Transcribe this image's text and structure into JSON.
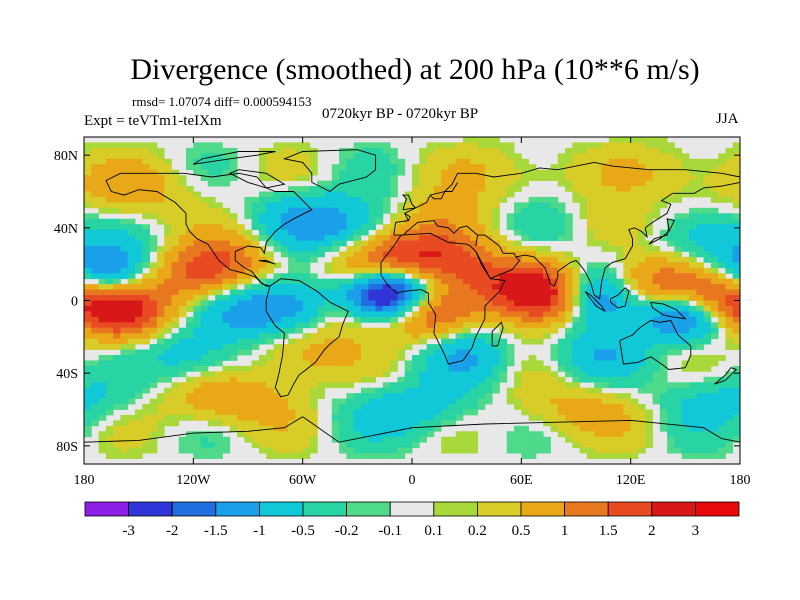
{
  "chart_data": {
    "type": "heatmap",
    "title": "Divergence (smoothed) at 200 hPa (10**6 m/s)",
    "stats_text": "rmsd= 1.07074 diff= 0.000594153",
    "experiment_text": "Expt = teVTm1-teIXm",
    "period_text": "0720kyr BP - 0720kyr BP",
    "season": "JJA",
    "x_range": [
      -180,
      180
    ],
    "y_range": [
      -90,
      90
    ],
    "x_ticks": [
      {
        "value": -180,
        "label": "180"
      },
      {
        "value": -120,
        "label": "120W"
      },
      {
        "value": -60,
        "label": "60W"
      },
      {
        "value": 0,
        "label": "0"
      },
      {
        "value": 60,
        "label": "60E"
      },
      {
        "value": 120,
        "label": "120E"
      },
      {
        "value": 180,
        "label": "180"
      }
    ],
    "y_ticks": [
      {
        "value": 80,
        "label": "80N"
      },
      {
        "value": 40,
        "label": "40N"
      },
      {
        "value": 0,
        "label": "0"
      },
      {
        "value": -40,
        "label": "40S"
      },
      {
        "value": -80,
        "label": "80S"
      }
    ],
    "contour_levels": [
      "-3",
      "-2",
      "-1.5",
      "-1",
      "-0.5",
      "-0.2",
      "-0.1",
      "0.1",
      "0.2",
      "0.5",
      "1",
      "1.5",
      "2",
      "3"
    ],
    "colorbar_colors": [
      "#8c1ee6",
      "#2f35d6",
      "#1f6fe0",
      "#1aa0e8",
      "#10c8d8",
      "#28d4a4",
      "#4fd98a",
      "#e8e8e8",
      "#a8d83a",
      "#d8cc28",
      "#e8a818",
      "#e87820",
      "#e84a22",
      "#d81818",
      "#e80a0a"
    ],
    "background_color": "#e8e8e8",
    "features": [
      {
        "lon": -12,
        "lat": 6,
        "value": -3.2
      },
      {
        "lon": -18,
        "lat": 2,
        "value": -2.0
      },
      {
        "lon": -20,
        "lat": 14,
        "value": 2.2
      },
      {
        "lon": 5,
        "lat": -6,
        "value": 2.0
      },
      {
        "lon": -35,
        "lat": -4,
        "value": 1.6
      },
      {
        "lon": 20,
        "lat": 24,
        "value": 1.5
      },
      {
        "lon": -5,
        "lat": 25,
        "value": 1.1
      },
      {
        "lon": 75,
        "lat": 2,
        "value": 3.0
      },
      {
        "lon": 55,
        "lat": 10,
        "value": 1.3
      },
      {
        "lon": 100,
        "lat": 2,
        "value": -2.5
      },
      {
        "lon": 150,
        "lat": -6,
        "value": -2.5
      },
      {
        "lon": 165,
        "lat": 2,
        "value": 2.6
      },
      {
        "lon": 135,
        "lat": 8,
        "value": 1.6
      },
      {
        "lon": -160,
        "lat": -6,
        "value": 2.3
      },
      {
        "lon": -170,
        "lat": 15,
        "value": -1.8
      },
      {
        "lon": -120,
        "lat": 12,
        "value": 1.3
      },
      {
        "lon": -100,
        "lat": 22,
        "value": 1.1
      },
      {
        "lon": -90,
        "lat": -5,
        "value": -1.2
      },
      {
        "lon": -60,
        "lat": -2,
        "value": -1.5
      },
      {
        "lon": -60,
        "lat": 45,
        "value": -1.0
      },
      {
        "lon": -30,
        "lat": 40,
        "value": -1.0
      },
      {
        "lon": 20,
        "lat": 45,
        "value": 0.9
      },
      {
        "lon": 70,
        "lat": 40,
        "value": -0.9
      },
      {
        "lon": 110,
        "lat": 40,
        "value": 0.8
      },
      {
        "lon": 160,
        "lat": 35,
        "value": -1.0
      },
      {
        "lon": 30,
        "lat": -30,
        "value": -0.9
      },
      {
        "lon": 100,
        "lat": -30,
        "value": -0.8
      },
      {
        "lon": -120,
        "lat": -30,
        "value": -0.9
      },
      {
        "lon": -60,
        "lat": -30,
        "value": 0.8
      },
      {
        "lon": -100,
        "lat": -55,
        "value": 0.9
      },
      {
        "lon": 0,
        "lat": -60,
        "value": -0.8
      },
      {
        "lon": 90,
        "lat": -60,
        "value": 0.7
      },
      {
        "lon": 170,
        "lat": -55,
        "value": -0.7
      },
      {
        "lon": -150,
        "lat": 60,
        "value": 0.6
      },
      {
        "lon": 60,
        "lat": 70,
        "value": 0.5
      },
      {
        "lon": 150,
        "lat": 70,
        "value": 0.5
      }
    ]
  }
}
